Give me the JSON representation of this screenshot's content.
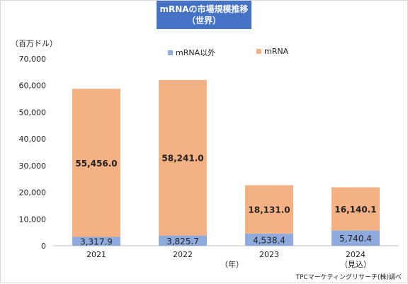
{
  "chart_data": {
    "type": "bar",
    "stacked": true,
    "title_line1": "mRNAの市場規模推移",
    "title_line2": "（世界）",
    "unit_label": "（百万ドル）",
    "xlabel": "（年）",
    "source": "TPCマーケティングリサーチ(株)調べ",
    "categories": [
      "2021",
      "2022",
      "2023",
      "2024"
    ],
    "category_notes": [
      "",
      "",
      "",
      "（見込）"
    ],
    "ylim": [
      0,
      70000
    ],
    "yticks": [
      0,
      10000,
      20000,
      30000,
      40000,
      50000,
      60000,
      70000
    ],
    "ytick_labels": [
      "0",
      "10,000",
      "20,000",
      "30,000",
      "40,000",
      "50,000",
      "60,000",
      "70,000"
    ],
    "grid": false,
    "legend_position": "top",
    "series": [
      {
        "name": "mRNA以外",
        "color": "#8faadc",
        "values": [
          3317.9,
          3825.7,
          4538.4,
          5740.4
        ],
        "labels": [
          "3,317.9",
          "3,825.7",
          "4,538.4",
          "5,740.4"
        ]
      },
      {
        "name": "mRNA",
        "color": "#f4b183",
        "values": [
          55456.0,
          58241.0,
          18131.0,
          16140.1
        ],
        "labels": [
          "55,456.0",
          "58,241.0",
          "18,131.0",
          "16,140.1"
        ]
      }
    ]
  }
}
